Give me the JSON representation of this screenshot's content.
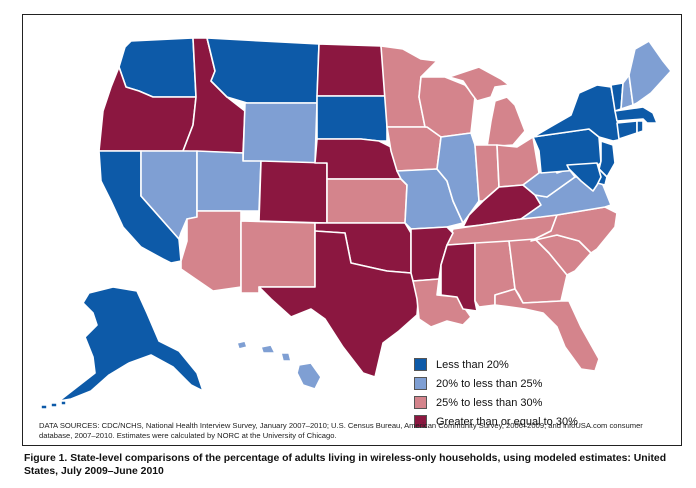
{
  "legend": {
    "items": [
      {
        "label": "Less than 20%",
        "color": "#0d5aa8"
      },
      {
        "label": "20% to less than 25%",
        "color": "#7f9fd3"
      },
      {
        "label": "25% to less than 30%",
        "color": "#d4848c"
      },
      {
        "label": "Greater than or equal to 30%",
        "color": "#8b1740"
      }
    ]
  },
  "states": {
    "less_than_20": [
      "Washington",
      "California",
      "Montana",
      "South Dakota",
      "New York",
      "Vermont",
      "New Hampshire",
      "Massachusetts",
      "Connecticut",
      "Rhode Island",
      "New Jersey",
      "Pennsylvania",
      "Delaware",
      "Maryland",
      "Alaska"
    ],
    "20_to_25": [
      "Nevada",
      "Utah",
      "Wyoming",
      "Illinois",
      "Missouri",
      "West Virginia",
      "Virginia",
      "Maine",
      "Hawaii"
    ],
    "25_to_30": [
      "Arizona",
      "New Mexico",
      "Kansas",
      "Minnesota",
      "Wisconsin",
      "Michigan",
      "Iowa",
      "Indiana",
      "Ohio",
      "Tennessee",
      "North Carolina",
      "South Carolina",
      "Georgia",
      "Alabama",
      "Florida",
      "Louisiana"
    ],
    "30_or_more": [
      "Oregon",
      "Idaho",
      "North Dakota",
      "Nebraska",
      "Colorado",
      "Oklahoma",
      "Texas",
      "Arkansas",
      "Mississippi",
      "Kentucky"
    ]
  },
  "data_sources": "DATA SOURCES: CDC/NCHS, National Health Interview Survey, January 2007–2010; U.S. Census Bureau, American Community Survey, 2006–2009; and infoUSA.com consumer database, 2007–2010. Estimates were calculated by NORC at the University of Chicago.",
  "caption": "Figure 1. State-level comparisons of the percentage of adults living in wireless-only households, using modeled estimates: United States, July 2009–June 2010"
}
